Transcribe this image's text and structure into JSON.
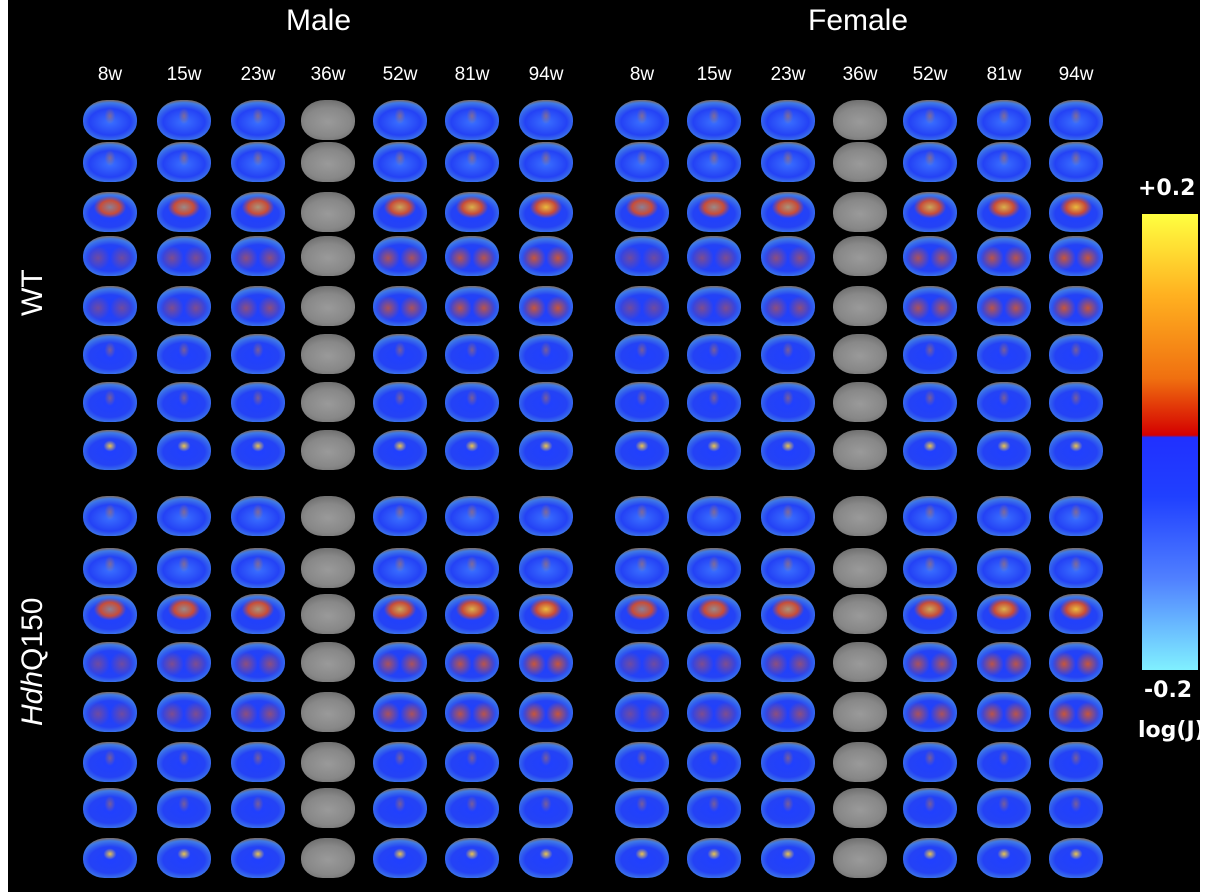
{
  "headers": {
    "male": "Male",
    "female": "Female"
  },
  "ages": [
    "8w",
    "15w",
    "23w",
    "36w",
    "52w",
    "81w",
    "94w"
  ],
  "genotypes": {
    "wt": "WT",
    "hdh_italic": "Hdh",
    "hdh_rest": "Q150"
  },
  "colorbar": {
    "max_label": "+0.2",
    "min_label": "-0.2",
    "unit_label": "log(J)"
  },
  "colors": {
    "background": "#000000",
    "positive": "#ff3000",
    "negative": "#2040ff",
    "reference": "#808080"
  },
  "grid": {
    "rows_per_genotype": 8,
    "reference_age": "36w"
  }
}
